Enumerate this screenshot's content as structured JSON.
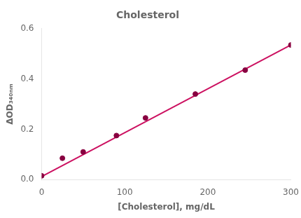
{
  "chart_data": {
    "type": "scatter",
    "title": "Cholesterol",
    "xlabel": "[Cholesterol], mg/dL",
    "ylabel": "ΔOD₃₄₀ₙₘ",
    "xlim": [
      0,
      300
    ],
    "ylim": [
      0.0,
      0.6
    ],
    "xticks": [
      0,
      100,
      200,
      300
    ],
    "yticks": [
      {
        "value": 0.0,
        "label": "0.0"
      },
      0.2,
      0.4,
      0.6
    ],
    "grid": false,
    "series": [
      {
        "type": "line",
        "color": "#cc1060",
        "line_style": "solid",
        "x": [
          0,
          300
        ],
        "values": [
          0.012,
          0.535
        ]
      },
      {
        "type": "scatter",
        "color": "#880040",
        "marker": "circle",
        "x": [
          0,
          25,
          50,
          90,
          125,
          185,
          245,
          300
        ],
        "values": [
          0.015,
          0.085,
          0.11,
          0.175,
          0.245,
          0.34,
          0.435,
          0.535
        ]
      }
    ]
  }
}
